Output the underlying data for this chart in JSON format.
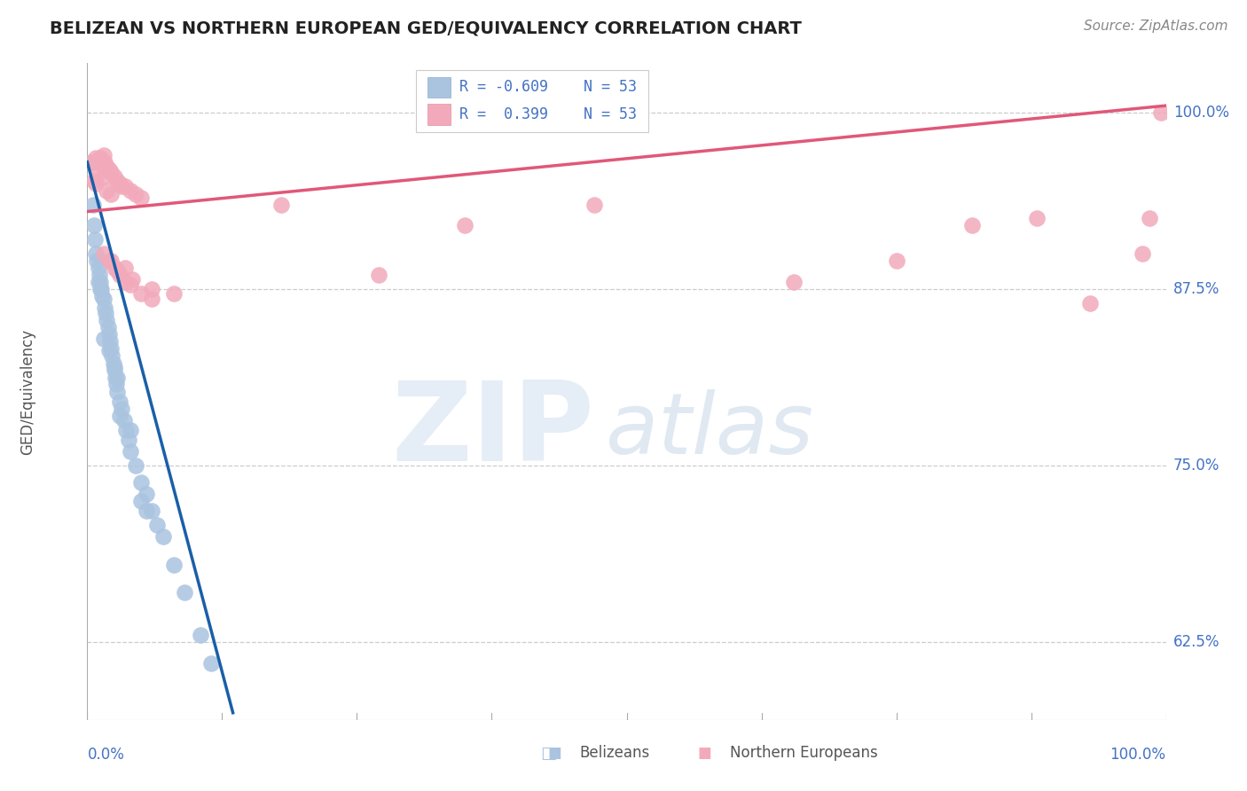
{
  "title": "BELIZEAN VS NORTHERN EUROPEAN GED/EQUIVALENCY CORRELATION CHART",
  "source": "Source: ZipAtlas.com",
  "ylabel": "GED/Equivalency",
  "yticks_labels": [
    "62.5%",
    "75.0%",
    "87.5%",
    "100.0%"
  ],
  "ytick_vals": [
    62.5,
    75.0,
    87.5,
    100.0
  ],
  "xrange": [
    0.0,
    100.0
  ],
  "yrange": [
    57.0,
    103.5
  ],
  "legend_blue_r": "-0.609",
  "legend_pink_r": "0.399",
  "legend_n": "53",
  "watermark_zip": "ZIP",
  "watermark_atlas": "atlas",
  "blue_color": "#aac4e0",
  "pink_color": "#f2aabb",
  "blue_line_color": "#1a5fa8",
  "pink_line_color": "#e05878",
  "blue_points": [
    [
      0.3,
      96.5
    ],
    [
      0.5,
      93.5
    ],
    [
      0.6,
      92.0
    ],
    [
      0.7,
      91.0
    ],
    [
      0.8,
      90.0
    ],
    [
      0.9,
      89.5
    ],
    [
      1.0,
      89.0
    ],
    [
      1.1,
      88.5
    ],
    [
      1.2,
      88.0
    ],
    [
      1.3,
      87.5
    ],
    [
      1.4,
      87.0
    ],
    [
      1.5,
      86.8
    ],
    [
      1.6,
      86.2
    ],
    [
      1.7,
      85.8
    ],
    [
      1.8,
      85.3
    ],
    [
      1.9,
      84.8
    ],
    [
      2.0,
      84.3
    ],
    [
      2.1,
      83.8
    ],
    [
      2.2,
      83.3
    ],
    [
      2.3,
      82.8
    ],
    [
      2.4,
      82.2
    ],
    [
      2.5,
      81.8
    ],
    [
      2.6,
      81.2
    ],
    [
      2.7,
      80.8
    ],
    [
      2.8,
      80.2
    ],
    [
      3.0,
      79.5
    ],
    [
      3.2,
      79.0
    ],
    [
      3.4,
      78.2
    ],
    [
      3.6,
      77.5
    ],
    [
      3.8,
      76.8
    ],
    [
      4.0,
      76.0
    ],
    [
      4.5,
      75.0
    ],
    [
      5.0,
      73.8
    ],
    [
      5.5,
      73.0
    ],
    [
      6.0,
      71.8
    ],
    [
      6.5,
      70.8
    ],
    [
      7.0,
      70.0
    ],
    [
      3.0,
      78.5
    ],
    [
      4.0,
      77.5
    ],
    [
      1.5,
      84.0
    ],
    [
      2.0,
      83.2
    ],
    [
      5.0,
      72.5
    ],
    [
      5.5,
      71.8
    ],
    [
      8.0,
      68.0
    ],
    [
      9.0,
      66.0
    ],
    [
      1.0,
      88.0
    ],
    [
      1.2,
      87.5
    ],
    [
      2.5,
      82.0
    ],
    [
      2.8,
      81.2
    ],
    [
      10.5,
      63.0
    ],
    [
      11.5,
      61.0
    ]
  ],
  "pink_points": [
    [
      0.5,
      96.5
    ],
    [
      0.8,
      96.8
    ],
    [
      1.0,
      96.5
    ],
    [
      1.2,
      96.8
    ],
    [
      1.3,
      96.5
    ],
    [
      1.5,
      97.0
    ],
    [
      1.6,
      96.5
    ],
    [
      1.8,
      96.2
    ],
    [
      2.0,
      96.0
    ],
    [
      2.2,
      95.8
    ],
    [
      2.5,
      95.5
    ],
    [
      2.8,
      95.2
    ],
    [
      3.0,
      95.0
    ],
    [
      3.2,
      94.8
    ],
    [
      3.5,
      94.8
    ],
    [
      4.0,
      94.5
    ],
    [
      4.5,
      94.2
    ],
    [
      5.0,
      94.0
    ],
    [
      1.0,
      95.8
    ],
    [
      1.5,
      95.5
    ],
    [
      0.6,
      95.2
    ],
    [
      0.8,
      95.0
    ],
    [
      1.8,
      94.5
    ],
    [
      2.2,
      94.2
    ],
    [
      1.5,
      90.0
    ],
    [
      2.0,
      89.5
    ],
    [
      2.5,
      89.0
    ],
    [
      3.0,
      88.5
    ],
    [
      3.5,
      88.0
    ],
    [
      4.0,
      87.8
    ],
    [
      5.0,
      87.2
    ],
    [
      6.0,
      86.8
    ],
    [
      6.0,
      87.5
    ],
    [
      8.0,
      87.2
    ],
    [
      3.5,
      89.0
    ],
    [
      4.2,
      88.2
    ],
    [
      2.2,
      89.5
    ],
    [
      2.8,
      88.8
    ],
    [
      18.0,
      93.5
    ],
    [
      27.0,
      88.5
    ],
    [
      35.0,
      92.0
    ],
    [
      47.0,
      93.5
    ],
    [
      65.5,
      88.0
    ],
    [
      75.0,
      89.5
    ],
    [
      82.0,
      92.0
    ],
    [
      88.0,
      92.5
    ],
    [
      93.0,
      86.5
    ],
    [
      97.8,
      90.0
    ],
    [
      98.5,
      92.5
    ],
    [
      99.5,
      100.0
    ]
  ],
  "blue_line": {
    "x0": 0.0,
    "y0": 96.5,
    "x1": 13.5,
    "y1": 57.5
  },
  "pink_line": {
    "x0": 0.0,
    "y0": 93.0,
    "x1": 100.0,
    "y1": 100.5
  },
  "grid_color": "#cccccc",
  "spine_color": "#aaaaaa",
  "ytick_color": "#4472c4",
  "xtick_color": "#4472c4",
  "title_color": "#222222",
  "source_color": "#888888",
  "ylabel_color": "#555555",
  "title_fontsize": 14,
  "source_fontsize": 11,
  "axis_label_fontsize": 12,
  "tick_label_fontsize": 12,
  "legend_fontsize": 12,
  "watermark_fontsize_zip": 90,
  "watermark_fontsize_atlas": 70
}
